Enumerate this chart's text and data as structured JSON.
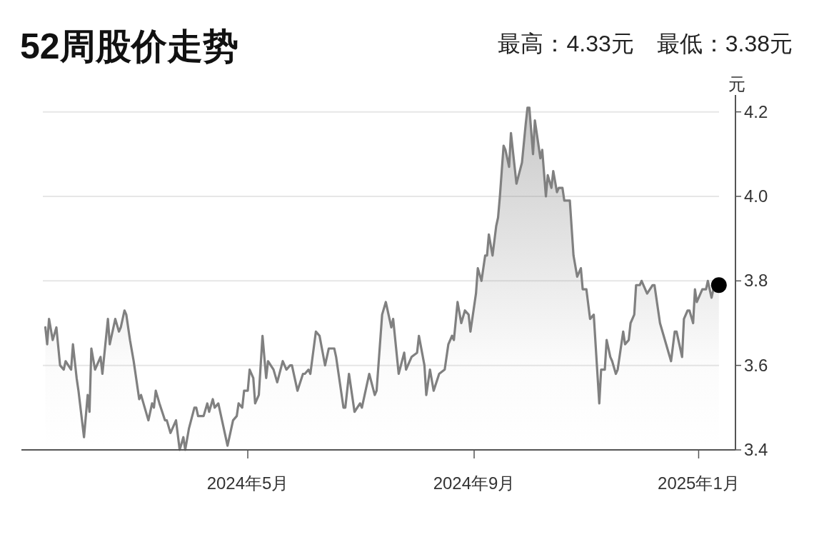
{
  "chart_data": {
    "type": "area",
    "title": "52周股价走势",
    "subtitle": "最高：4.33元　最低：3.38元",
    "ylabel": "元",
    "xlim": [
      "2023-12-30",
      "2025-01-21"
    ],
    "xticks": [
      {
        "value": "2024-05-01",
        "label": "2024年5月"
      },
      {
        "value": "2024-09-01",
        "label": "2024年9月"
      },
      {
        "value": "2025-01-01",
        "label": "2025年1月"
      }
    ],
    "ylim": [
      3.4,
      4.24
    ],
    "yticks": [
      3.4,
      3.6,
      3.8,
      {
        "value": 4.0,
        "label": "4.0"
      },
      4.2
    ],
    "grid": "y",
    "series": [
      {
        "color": "#808080",
        "x": [
          "2024-01-12",
          "2024-01-13",
          "2024-01-14",
          "2024-01-16",
          "2024-01-18",
          "2024-01-20",
          "2024-01-22",
          "2024-01-23",
          "2024-01-26",
          "2024-01-27",
          "2024-01-29",
          "2024-01-30",
          "2024-02-02",
          "2024-02-04",
          "2024-02-05",
          "2024-02-06",
          "2024-02-08",
          "2024-02-11",
          "2024-02-12",
          "2024-02-15",
          "2024-02-16",
          "2024-02-19",
          "2024-02-21",
          "2024-02-22",
          "2024-02-24",
          "2024-02-25",
          "2024-02-27",
          "2024-02-29",
          "2024-03-03",
          "2024-03-04",
          "2024-03-08",
          "2024-03-10",
          "2024-03-11",
          "2024-03-12",
          "2024-03-14",
          "2024-03-17",
          "2024-03-18",
          "2024-03-20",
          "2024-03-23",
          "2024-03-25",
          "2024-03-27",
          "2024-03-28",
          "2024-03-30",
          "2024-04-02",
          "2024-04-03",
          "2024-04-04",
          "2024-04-07",
          "2024-04-09",
          "2024-04-10",
          "2024-04-12",
          "2024-04-13",
          "2024-04-15",
          "2024-04-17",
          "2024-04-20",
          "2024-04-23",
          "2024-04-25",
          "2024-04-26",
          "2024-04-28",
          "2024-04-29",
          "2024-05-01",
          "2024-05-02",
          "2024-05-04",
          "2024-05-05",
          "2024-05-07",
          "2024-05-09",
          "2024-05-11",
          "2024-05-12",
          "2024-05-15",
          "2024-05-17",
          "2024-05-20",
          "2024-05-22",
          "2024-05-24",
          "2024-05-25",
          "2024-05-28",
          "2024-05-31",
          "2024-06-01",
          "2024-06-03",
          "2024-06-04",
          "2024-06-07",
          "2024-06-09",
          "2024-06-12",
          "2024-06-14",
          "2024-06-17",
          "2024-06-18",
          "2024-06-22",
          "2024-06-23",
          "2024-06-25",
          "2024-06-28",
          "2024-07-01",
          "2024-07-02",
          "2024-07-06",
          "2024-07-09",
          "2024-07-10",
          "2024-07-13",
          "2024-07-15",
          "2024-07-18",
          "2024-07-19",
          "2024-07-22",
          "2024-07-25",
          "2024-07-26",
          "2024-07-29",
          "2024-08-01",
          "2024-08-02",
          "2024-08-05",
          "2024-08-06",
          "2024-08-08",
          "2024-08-10",
          "2024-08-13",
          "2024-08-16",
          "2024-08-18",
          "2024-08-20",
          "2024-08-21",
          "2024-08-23",
          "2024-08-25",
          "2024-08-27",
          "2024-08-29",
          "2024-08-30",
          "2024-09-02",
          "2024-09-03",
          "2024-09-05",
          "2024-09-07",
          "2024-09-08",
          "2024-09-09",
          "2024-09-11",
          "2024-09-13",
          "2024-09-14",
          "2024-09-15",
          "2024-09-17",
          "2024-09-18",
          "2024-09-20",
          "2024-09-21",
          "2024-09-24",
          "2024-09-27",
          "2024-09-29",
          "2024-09-30",
          "2024-10-01",
          "2024-10-03",
          "2024-10-04",
          "2024-10-07",
          "2024-10-08",
          "2024-10-10",
          "2024-10-11",
          "2024-10-13",
          "2024-10-14",
          "2024-10-16",
          "2024-10-17",
          "2024-10-19",
          "2024-10-20",
          "2024-10-23",
          "2024-10-25",
          "2024-10-27",
          "2024-10-29",
          "2024-10-30",
          "2024-11-01",
          "2024-11-03",
          "2024-11-05",
          "2024-11-08",
          "2024-11-09",
          "2024-11-11",
          "2024-11-12",
          "2024-11-14",
          "2024-11-15",
          "2024-11-17",
          "2024-11-18",
          "2024-11-21",
          "2024-11-22",
          "2024-11-24",
          "2024-11-25",
          "2024-11-27",
          "2024-11-28",
          "2024-11-30",
          "2024-12-01",
          "2024-12-04",
          "2024-12-07",
          "2024-12-08",
          "2024-12-11",
          "2024-12-17",
          "2024-12-19",
          "2024-12-20",
          "2024-12-23",
          "2024-12-24",
          "2024-12-26",
          "2024-12-27",
          "2024-12-29",
          "2024-12-30",
          "2024-12-31",
          "2025-01-03",
          "2025-01-05",
          "2025-01-06",
          "2025-01-08",
          "2025-01-10",
          "2025-01-12"
        ],
        "values": [
          3.69,
          3.65,
          3.71,
          3.66,
          3.69,
          3.6,
          3.59,
          3.61,
          3.59,
          3.65,
          3.57,
          3.54,
          3.43,
          3.53,
          3.49,
          3.64,
          3.59,
          3.62,
          3.58,
          3.71,
          3.65,
          3.71,
          3.68,
          3.69,
          3.73,
          3.72,
          3.66,
          3.61,
          3.52,
          3.53,
          3.47,
          3.51,
          3.5,
          3.54,
          3.51,
          3.47,
          3.47,
          3.44,
          3.47,
          3.4,
          3.43,
          3.4,
          3.45,
          3.5,
          3.5,
          3.48,
          3.48,
          3.51,
          3.49,
          3.52,
          3.5,
          3.51,
          3.47,
          3.41,
          3.47,
          3.48,
          3.51,
          3.5,
          3.54,
          3.54,
          3.59,
          3.57,
          3.51,
          3.53,
          3.67,
          3.57,
          3.61,
          3.59,
          3.56,
          3.61,
          3.59,
          3.6,
          3.6,
          3.54,
          3.58,
          3.58,
          3.59,
          3.58,
          3.68,
          3.67,
          3.6,
          3.64,
          3.64,
          3.62,
          3.5,
          3.5,
          3.58,
          3.49,
          3.51,
          3.5,
          3.58,
          3.53,
          3.54,
          3.72,
          3.75,
          3.69,
          3.71,
          3.58,
          3.63,
          3.59,
          3.62,
          3.63,
          3.67,
          3.6,
          3.53,
          3.59,
          3.54,
          3.58,
          3.59,
          3.65,
          3.67,
          3.66,
          3.75,
          3.7,
          3.73,
          3.72,
          3.68,
          3.77,
          3.83,
          3.8,
          3.86,
          3.86,
          3.91,
          3.86,
          3.93,
          3.95,
          4.0,
          4.12,
          4.11,
          4.07,
          4.15,
          4.03,
          4.08,
          4.17,
          4.21,
          4.21,
          4.1,
          4.18,
          4.09,
          4.11,
          4.0,
          4.05,
          4.02,
          4.06,
          4.01,
          4.02,
          4.02,
          3.99,
          3.99,
          3.86,
          3.81,
          3.83,
          3.78,
          3.78,
          3.71,
          3.72,
          3.51,
          3.59,
          3.59,
          3.66,
          3.62,
          3.61,
          3.58,
          3.59,
          3.68,
          3.65,
          3.66,
          3.7,
          3.72,
          3.79,
          3.79,
          3.8,
          3.77,
          3.79,
          3.79,
          3.7,
          3.61,
          3.68,
          3.68,
          3.62,
          3.71,
          3.73,
          3.73,
          3.7,
          3.78,
          3.75,
          3.78,
          3.78,
          3.8,
          3.76,
          3.8,
          3.79
        ]
      },
      {
        "type": "scatter",
        "color": "#000000",
        "marker": "circle",
        "x": [
          "2025-01-12"
        ],
        "values": [
          3.79
        ]
      }
    ]
  }
}
